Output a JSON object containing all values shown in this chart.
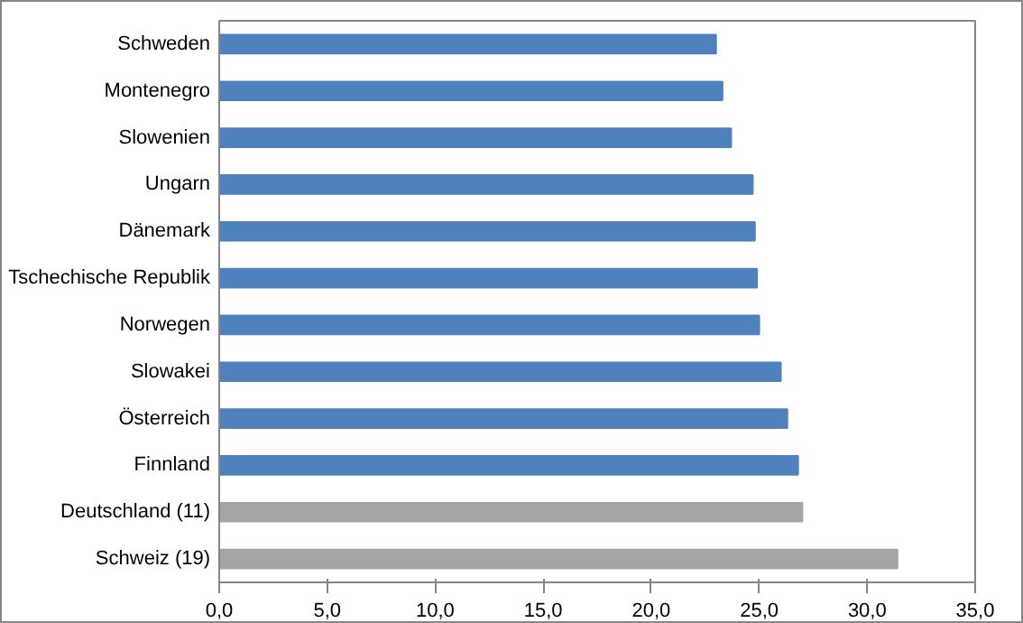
{
  "chart_data": {
    "type": "bar",
    "orientation": "horizontal",
    "categories": [
      "Schweden",
      "Montenegro",
      "Slowenien",
      "Ungarn",
      "Dänemark",
      "Tschechische Republik",
      "Norwegen",
      "Slowakei",
      "Österreich",
      "Finnland",
      "Deutschland (11)",
      "Schweiz (19)"
    ],
    "values": [
      23.0,
      23.3,
      23.7,
      24.7,
      24.8,
      24.9,
      25.0,
      26.0,
      26.3,
      26.8,
      27.0,
      31.4
    ],
    "colors": [
      "#4f81bd",
      "#4f81bd",
      "#4f81bd",
      "#4f81bd",
      "#4f81bd",
      "#4f81bd",
      "#4f81bd",
      "#4f81bd",
      "#4f81bd",
      "#4f81bd",
      "#a5a5a5",
      "#a5a5a5"
    ],
    "xlim": [
      0,
      35
    ],
    "xticks": [
      {
        "value": 0,
        "label": "0,0"
      },
      {
        "value": 5,
        "label": "5,0"
      },
      {
        "value": 10,
        "label": "10,0"
      },
      {
        "value": 15,
        "label": "15,0"
      },
      {
        "value": 20,
        "label": "20,0"
      },
      {
        "value": 25,
        "label": "25,0"
      },
      {
        "value": 30,
        "label": "30,0"
      },
      {
        "value": 35,
        "label": "35,0"
      }
    ],
    "grid": false
  }
}
